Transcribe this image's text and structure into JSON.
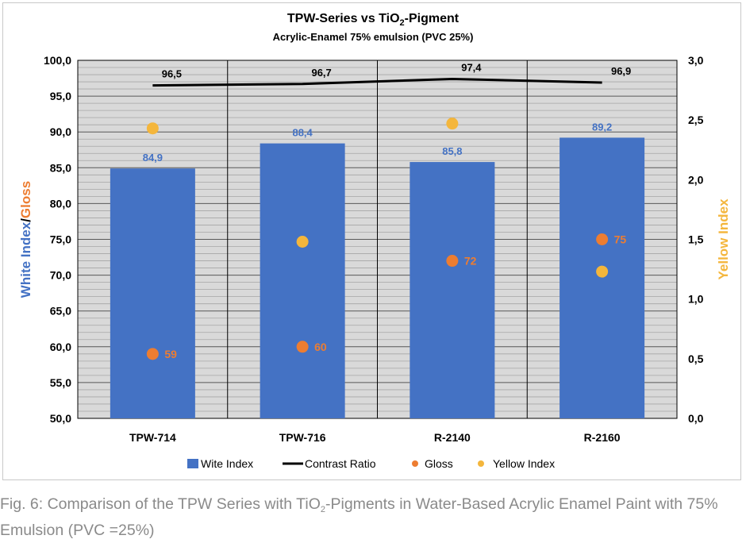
{
  "chart_data": {
    "type": "bar",
    "title": {
      "prefix": "TPW-Series vs TiO",
      "sub": "2",
      "suffix": "-Pigment"
    },
    "subtitle": "Acrylic-Enamel 75% emulsion (PVC 25%)",
    "categories": [
      "TPW-714",
      "TPW-716",
      "R-2140",
      "R-2160"
    ],
    "ylabel_left": {
      "part1": "White Index",
      "sep": "/",
      "part2": "Gloss"
    },
    "ylabel_right": "Yellow Index",
    "ylim_left": [
      50,
      100
    ],
    "ylim_right": [
      0,
      3
    ],
    "yticks_left": [
      "50,0",
      "55,0",
      "60,0",
      "65,0",
      "70,0",
      "75,0",
      "80,0",
      "85,0",
      "90,0",
      "95,0",
      "100,0"
    ],
    "yticks_right": [
      "0,0",
      "0,5",
      "1,0",
      "1,5",
      "2,0",
      "2,5",
      "3,0"
    ],
    "series": [
      {
        "name": "Wite Index",
        "kind": "bar",
        "axis": "left",
        "values": [
          84.9,
          88.4,
          85.8,
          89.2
        ],
        "labels": [
          "84,9",
          "88,4",
          "85,8",
          "89,2"
        ]
      },
      {
        "name": "Contrast Ratio",
        "kind": "line",
        "axis": "left",
        "values": [
          96.5,
          96.7,
          97.4,
          96.9
        ],
        "labels": [
          "96,5",
          "96,7",
          "97,4",
          "96,9"
        ]
      },
      {
        "name": "Gloss",
        "kind": "scatter",
        "axis": "left",
        "values": [
          59,
          60,
          72,
          75
        ],
        "labels": [
          "59",
          "60",
          "72",
          "75"
        ]
      },
      {
        "name": "Yellow Index",
        "kind": "scatter",
        "axis": "right",
        "values": [
          2.43,
          1.48,
          2.47,
          1.23
        ]
      }
    ],
    "legend": [
      "Wite Index",
      "Contrast Ratio",
      "Gloss",
      "Yellow Index"
    ],
    "legend_position": "bottom",
    "grid": true
  },
  "colors": {
    "bar": "#4472c4",
    "line": "#000000",
    "gloss": "#ed7d31",
    "yellow": "#f4b63c",
    "plot_bg": "#d9d9d9",
    "grid": "#a6a6a6",
    "bar_label": "#4472c4"
  },
  "caption": {
    "prefix": "Fig. 6: Comparison of the TPW Series with TiO",
    "sub": "2",
    "suffix": "-Pigments in Water-Based Acrylic Enamel Paint with 75% Emulsion (PVC =25%)"
  }
}
